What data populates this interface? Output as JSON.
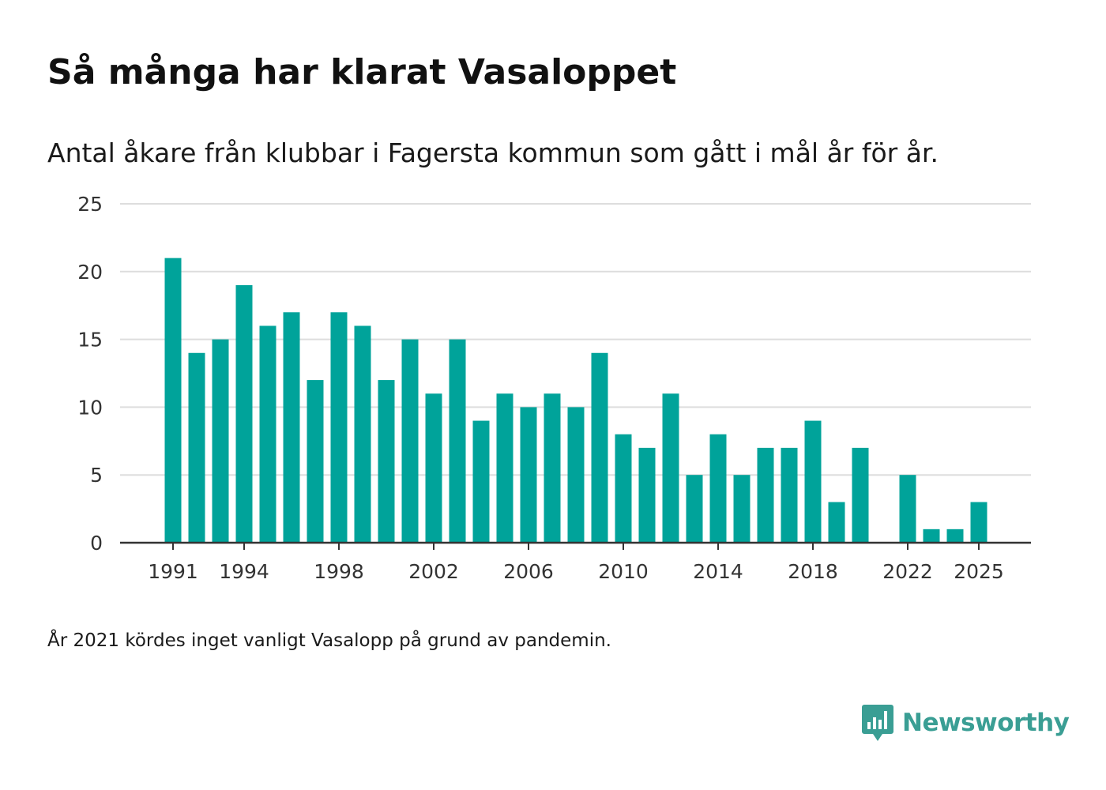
{
  "header": {
    "title": "Så många har klarat Vasaloppet",
    "subtitle": "Antal åkare från klubbar i Fagersta kommun som gått i mål år för år."
  },
  "footnote": "År 2021 kördes inget vanligt Vasalopp på grund av pandemin.",
  "brand": {
    "name": "Newsworthy",
    "icon": "newsworthy-logo-icon",
    "color": "#3a9e94"
  },
  "colors": {
    "bar": "#00a39a",
    "grid": "#dddddd",
    "axis": "#333333"
  },
  "chart_data": {
    "type": "bar",
    "title": "Så många har klarat Vasaloppet",
    "subtitle": "Antal åkare från klubbar i Fagersta kommun som gått i mål år för år.",
    "xlabel": "",
    "ylabel": "",
    "ylim": [
      0,
      25
    ],
    "yticks": [
      0,
      5,
      10,
      15,
      20,
      25
    ],
    "xticks": [
      1991,
      1994,
      1998,
      2002,
      2006,
      2010,
      2014,
      2018,
      2022,
      2025
    ],
    "grid": true,
    "categories": [
      1991,
      1992,
      1993,
      1994,
      1995,
      1996,
      1997,
      1998,
      1999,
      2000,
      2001,
      2002,
      2003,
      2004,
      2005,
      2006,
      2007,
      2008,
      2009,
      2010,
      2011,
      2012,
      2013,
      2014,
      2015,
      2016,
      2017,
      2018,
      2019,
      2020,
      2021,
      2022,
      2023,
      2024,
      2025
    ],
    "values": [
      21,
      14,
      15,
      19,
      16,
      17,
      12,
      17,
      16,
      12,
      15,
      11,
      15,
      9,
      11,
      10,
      11,
      10,
      14,
      8,
      7,
      11,
      5,
      8,
      5,
      7,
      7,
      9,
      3,
      7,
      null,
      5,
      1,
      1,
      3
    ]
  }
}
